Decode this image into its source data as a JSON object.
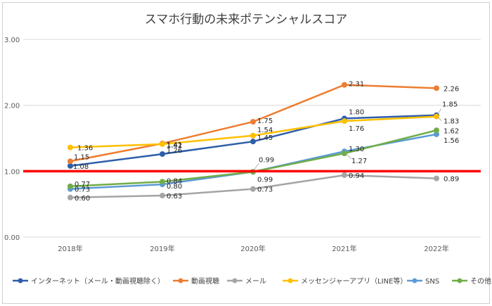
{
  "chart_data": {
    "type": "line",
    "title": "スマホ行動の未来ポテンシャルスコア",
    "categories": [
      "2018年",
      "2019年",
      "2020年",
      "2021年",
      "2022年"
    ],
    "y_ticks": [
      "0.00",
      "1.00",
      "2.00",
      "3.00"
    ],
    "ylim": [
      0,
      3
    ],
    "grid": true,
    "legend_position": "bottom",
    "reference_line": {
      "value": 1.0,
      "color": "#ff0000"
    },
    "series": [
      {
        "name": "インターネット（メール・動画視聴除く）",
        "color": "#2e5ea9",
        "values": [
          1.08,
          1.26,
          1.45,
          1.8,
          1.85
        ],
        "labels": [
          "1.08",
          "1.26",
          "1.45",
          "1.80",
          "1.85"
        ]
      },
      {
        "name": "動画視聴",
        "color": "#ed7d31",
        "values": [
          1.15,
          1.42,
          1.75,
          2.31,
          2.26
        ],
        "labels": [
          "1.15",
          "1.42",
          "1.75",
          "2.31",
          "2.26"
        ]
      },
      {
        "name": "メール",
        "color": "#a5a5a5",
        "values": [
          0.6,
          0.63,
          0.73,
          0.94,
          0.89
        ],
        "labels": [
          "0.60",
          "0.63",
          "0.73",
          "0.94",
          "0.89"
        ]
      },
      {
        "name": "メッセンジャーアプリ（LINE等）",
        "color": "#ffc000",
        "values": [
          1.36,
          1.41,
          1.54,
          1.76,
          1.83
        ],
        "labels": [
          "1.36",
          "1.41",
          "1.54",
          "1.76",
          "1.83"
        ]
      },
      {
        "name": "SNS",
        "color": "#5b9bd5",
        "values": [
          0.73,
          0.8,
          0.99,
          1.3,
          1.56
        ],
        "labels": [
          "0.73",
          "0.80",
          "0.99",
          "1.30",
          "1.56"
        ]
      },
      {
        "name": "その他",
        "color": "#70ad47",
        "values": [
          0.77,
          0.84,
          0.99,
          1.27,
          1.62
        ],
        "labels": [
          "0.77",
          "0.84",
          "0.99",
          "1.27",
          "1.62"
        ]
      }
    ]
  }
}
